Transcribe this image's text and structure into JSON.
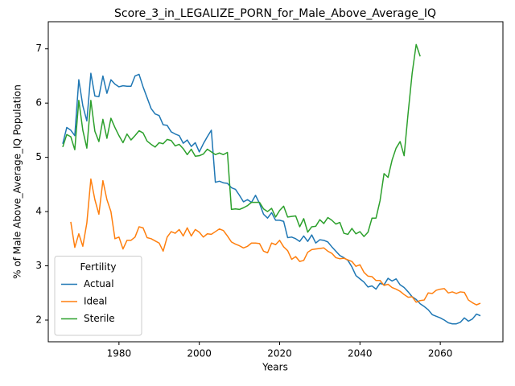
{
  "chart_data": {
    "type": "line",
    "title": "Score_3_in_LEGALIZE_PORN_for_Male_Above_Average_IQ",
    "x_label": "Years",
    "y_label": "% of Male Above_Average_IQ Population",
    "legend_title": "Fertility",
    "legend_position": "lower left",
    "grid": false,
    "xlim": [
      1962.4,
      2075.6
    ],
    "ylim": [
      1.6,
      7.5
    ],
    "xticks": [
      1980,
      2000,
      2020,
      2040,
      2060
    ],
    "yticks": [
      2,
      3,
      4,
      5,
      6,
      7
    ],
    "x": [
      1966,
      1967,
      1968,
      1969,
      1970,
      1971,
      1972,
      1973,
      1974,
      1975,
      1976,
      1977,
      1978,
      1979,
      1980,
      1981,
      1982,
      1983,
      1984,
      1985,
      1986,
      1987,
      1988,
      1989,
      1990,
      1991,
      1992,
      1993,
      1994,
      1995,
      1996,
      1997,
      1998,
      1999,
      2000,
      2001,
      2002,
      2003,
      2004,
      2005,
      2006,
      2007,
      2008,
      2009,
      2010,
      2011,
      2012,
      2013,
      2014,
      2015,
      2016,
      2017,
      2018,
      2019,
      2020,
      2021,
      2022,
      2023,
      2024,
      2025,
      2026,
      2027,
      2028,
      2029,
      2030,
      2031,
      2032,
      2033,
      2034,
      2035,
      2036,
      2037,
      2038,
      2039,
      2040,
      2041,
      2042,
      2043,
      2044,
      2045,
      2046,
      2047,
      2048,
      2049,
      2050,
      2051,
      2052,
      2053,
      2054,
      2055,
      2056,
      2057,
      2058,
      2059,
      2060,
      2061,
      2062,
      2063,
      2064,
      2065,
      2066,
      2067,
      2068,
      2069,
      2070
    ],
    "series": [
      {
        "name": "Actual",
        "color": "#1f77b4",
        "values": [
          5.25,
          5.55,
          5.5,
          5.4,
          6.43,
          5.95,
          5.67,
          6.55,
          6.13,
          6.12,
          6.5,
          6.18,
          6.43,
          6.35,
          6.3,
          6.32,
          6.31,
          6.31,
          6.5,
          6.53,
          6.3,
          6.1,
          5.9,
          5.8,
          5.77,
          5.6,
          5.59,
          5.47,
          5.43,
          5.4,
          5.26,
          5.32,
          5.2,
          5.27,
          5.1,
          5.25,
          5.38,
          5.5,
          4.54,
          4.56,
          4.53,
          4.52,
          4.44,
          4.41,
          4.3,
          4.18,
          4.22,
          4.17,
          4.3,
          4.15,
          3.95,
          3.88,
          3.98,
          3.84,
          3.84,
          3.82,
          3.52,
          3.53,
          3.5,
          3.45,
          3.55,
          3.45,
          3.57,
          3.42,
          3.48,
          3.47,
          3.44,
          3.35,
          3.27,
          3.19,
          3.15,
          3.1,
          2.98,
          2.82,
          2.76,
          2.7,
          2.61,
          2.63,
          2.57,
          2.68,
          2.65,
          2.77,
          2.72,
          2.76,
          2.65,
          2.6,
          2.52,
          2.43,
          2.38,
          2.3,
          2.25,
          2.19,
          2.1,
          2.07,
          2.04,
          2.0,
          1.95,
          1.93,
          1.93,
          1.96,
          2.04,
          1.98,
          2.02,
          2.11,
          2.08
        ]
      },
      {
        "name": "Ideal",
        "color": "#ff7f0e",
        "values": [
          null,
          null,
          3.81,
          3.34,
          3.59,
          3.36,
          3.79,
          4.6,
          4.22,
          3.95,
          4.57,
          4.22,
          4.0,
          3.5,
          3.53,
          3.31,
          3.47,
          3.47,
          3.53,
          3.72,
          3.7,
          3.52,
          3.5,
          3.46,
          3.42,
          3.27,
          3.53,
          3.63,
          3.6,
          3.67,
          3.55,
          3.7,
          3.55,
          3.67,
          3.62,
          3.53,
          3.59,
          3.58,
          3.63,
          3.68,
          3.65,
          3.55,
          3.44,
          3.4,
          3.37,
          3.33,
          3.36,
          3.42,
          3.42,
          3.41,
          3.27,
          3.24,
          3.42,
          3.39,
          3.47,
          3.35,
          3.28,
          3.12,
          3.17,
          3.08,
          3.1,
          3.25,
          3.3,
          3.31,
          3.32,
          3.33,
          3.27,
          3.23,
          3.15,
          3.13,
          3.14,
          3.11,
          3.08,
          2.99,
          3.02,
          2.88,
          2.81,
          2.8,
          2.73,
          2.73,
          2.64,
          2.66,
          2.6,
          2.57,
          2.53,
          2.47,
          2.42,
          2.43,
          2.33,
          2.36,
          2.37,
          2.5,
          2.49,
          2.55,
          2.57,
          2.58,
          2.5,
          2.52,
          2.49,
          2.52,
          2.51,
          2.37,
          2.32,
          2.28,
          2.31
        ]
      },
      {
        "name": "Sterile",
        "color": "#2ca02c",
        "values": [
          5.19,
          5.42,
          5.38,
          5.14,
          6.05,
          5.5,
          5.17,
          6.05,
          5.48,
          5.29,
          5.7,
          5.35,
          5.72,
          5.55,
          5.4,
          5.27,
          5.43,
          5.32,
          5.4,
          5.49,
          5.45,
          5.3,
          5.24,
          5.19,
          5.27,
          5.25,
          5.33,
          5.31,
          5.21,
          5.24,
          5.16,
          5.05,
          5.15,
          5.02,
          5.03,
          5.06,
          5.15,
          5.1,
          5.05,
          5.08,
          5.05,
          5.09,
          4.04,
          4.05,
          4.04,
          4.07,
          4.11,
          4.17,
          4.17,
          4.17,
          4.05,
          4.0,
          4.06,
          3.9,
          4.02,
          4.1,
          3.9,
          3.91,
          3.92,
          3.72,
          3.87,
          3.62,
          3.72,
          3.73,
          3.85,
          3.78,
          3.89,
          3.84,
          3.77,
          3.8,
          3.6,
          3.58,
          3.69,
          3.59,
          3.63,
          3.54,
          3.62,
          3.88,
          3.88,
          4.2,
          4.7,
          4.63,
          4.95,
          5.17,
          5.29,
          5.03,
          5.82,
          6.55,
          7.08,
          6.86,
          null,
          null,
          null,
          null,
          null,
          null,
          null,
          null,
          null,
          null,
          null,
          null,
          null,
          null,
          null
        ]
      }
    ]
  }
}
